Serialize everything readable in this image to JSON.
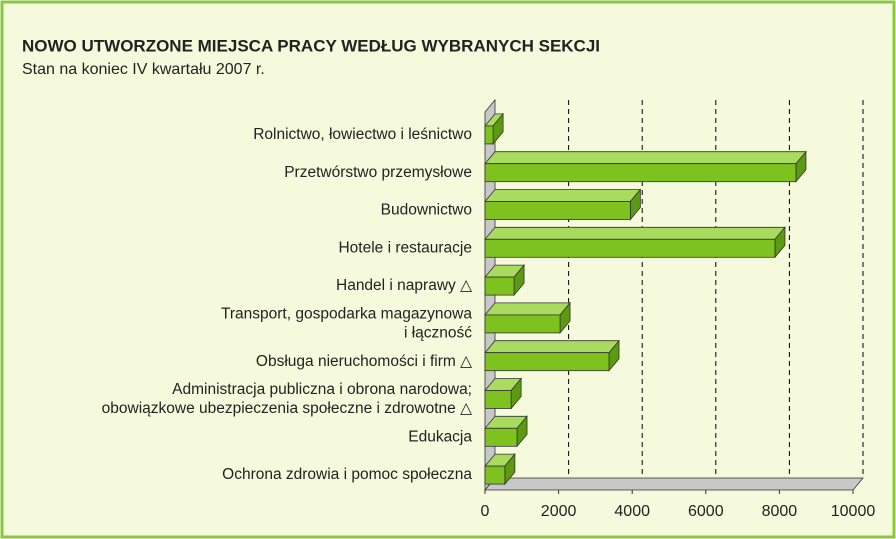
{
  "chart_data": {
    "type": "bar3d",
    "title": "NOWO UTWORZONE MIEJSCA PRACY WEDŁUG WYBRANYCH SEKCJI",
    "subtitle": "Stan na koniec IV kwartału 2007 r.",
    "categories": [
      [
        "Rolnictwo, łowiectwo i leśnictwo"
      ],
      [
        "Przetwórstwo przemysłowe"
      ],
      [
        "Budownictwo"
      ],
      [
        "Hotele i restauracje"
      ],
      [
        "Handel i naprawy △"
      ],
      [
        "Transport, gospodarka magazynowa",
        "i łączność"
      ],
      [
        "Obsługa nieruchomości i firm △"
      ],
      [
        "Administracja publiczna i obrona narodowa;",
        "obowiązkowe ubezpieczenia społeczne i zdrowotne △"
      ],
      [
        "Edukacja"
      ],
      [
        "Ochrona zdrowia i pomoc społeczna"
      ]
    ],
    "values": [
      220,
      8450,
      3950,
      7880,
      790,
      2040,
      3370,
      710,
      870,
      540
    ],
    "color": "#7dc21e",
    "xlim": [
      0,
      10000
    ],
    "xticks": [
      0,
      2000,
      4000,
      6000,
      8000,
      10000
    ],
    "grid": true
  }
}
